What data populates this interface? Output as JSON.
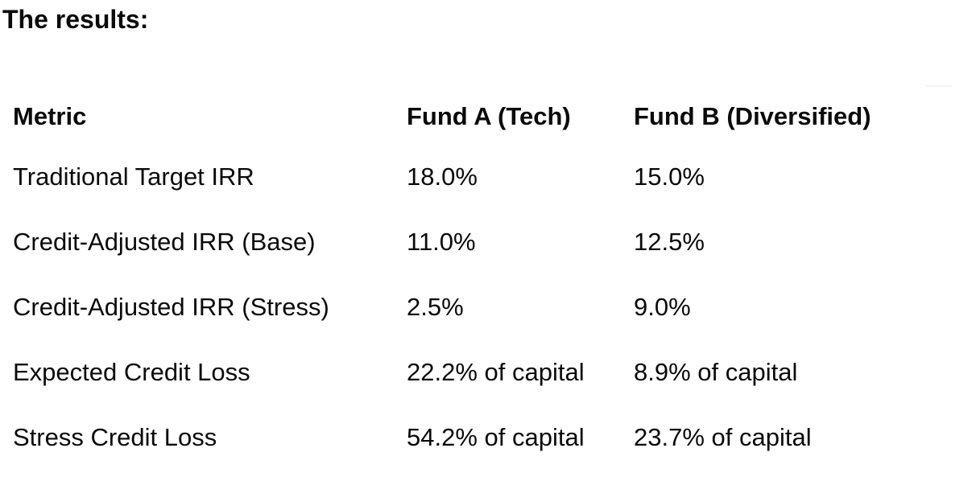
{
  "page": {
    "intro": "The results:"
  },
  "table": {
    "columns": [
      "Metric",
      "Fund A (Tech)",
      "Fund B (Diversified)"
    ],
    "rows": [
      {
        "metric": "Traditional Target IRR",
        "fund_a": "18.0%",
        "fund_b": "15.0%"
      },
      {
        "metric": "Credit-Adjusted IRR (Base)",
        "fund_a": "11.0%",
        "fund_b": "12.5%"
      },
      {
        "metric": "Credit-Adjusted IRR (Stress)",
        "fund_a": "2.5%",
        "fund_b": "9.0%"
      },
      {
        "metric": "Expected Credit Loss",
        "fund_a": "22.2% of capital",
        "fund_b": "8.9% of capital"
      },
      {
        "metric": "Stress Credit Loss",
        "fund_a": "54.2% of capital",
        "fund_b": "23.7% of capital"
      }
    ]
  },
  "colors": {
    "text": "#0a0a0a",
    "background": "#ffffff",
    "faint_line": "#f5f3f3"
  }
}
